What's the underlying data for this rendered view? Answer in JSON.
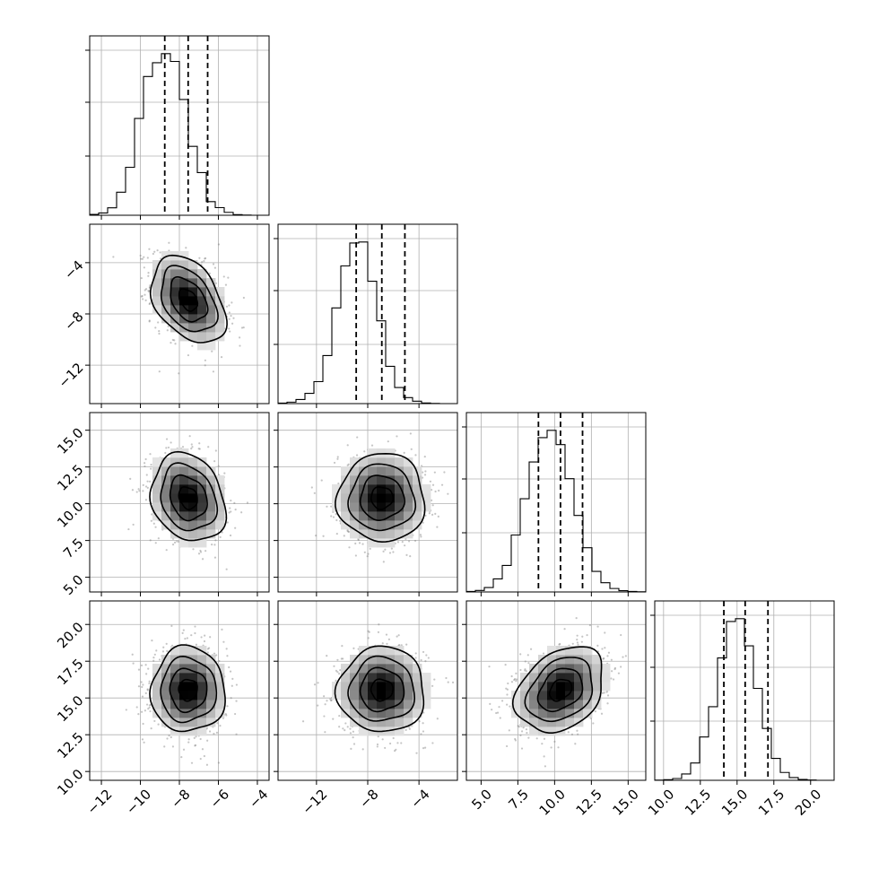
{
  "chart_data": {
    "type": "corner",
    "n_params": 4,
    "grid": true,
    "colors": {
      "line": "#000000",
      "grid": "#b0b0b0",
      "scatter": "#7f7f7f",
      "density_dark": "#000000"
    },
    "params": [
      {
        "index": 0,
        "range": [
          -12.6,
          -3.4
        ],
        "ticks": [
          -12,
          -10,
          -8,
          -6,
          -4
        ],
        "tick_labels": [
          "−12",
          "−10",
          "−8",
          "−6",
          "−4"
        ],
        "mean": -7.55,
        "sd": 0.95,
        "quantiles": [
          -8.75,
          -7.55,
          -6.55
        ]
      },
      {
        "index": 1,
        "range": [
          -15.0,
          -1.0
        ],
        "ticks": [
          -12,
          -8,
          -4
        ],
        "tick_labels": [
          "−12",
          "−8",
          "−4"
        ],
        "mean": -6.9,
        "sd": 1.7,
        "quantiles": [
          -8.9,
          -6.9,
          -5.1
        ]
      },
      {
        "index": 2,
        "range": [
          4.0,
          16.2
        ],
        "ticks": [
          5.0,
          7.5,
          10.0,
          12.5,
          15.0
        ],
        "tick_labels": [
          "5.0",
          "7.5",
          "10.0",
          "12.5",
          "15.0"
        ],
        "mean": 10.4,
        "sd": 1.5,
        "quantiles": [
          8.9,
          10.4,
          11.9
        ]
      },
      {
        "index": 3,
        "range": [
          9.4,
          21.6
        ],
        "ticks": [
          10.0,
          12.5,
          15.0,
          17.5,
          20.0
        ],
        "tick_labels": [
          "10.0",
          "12.5",
          "15.0",
          "17.5",
          "20.0"
        ],
        "mean": 15.55,
        "sd": 1.45,
        "quantiles": [
          14.1,
          15.55,
          17.1
        ]
      }
    ],
    "histograms": [
      {
        "param": 0,
        "bins": 20,
        "peak_count": 1000,
        "counts": [
          5,
          14,
          46,
          142,
          296,
          597,
          856,
          941,
          997,
          949,
          714,
          425,
          263,
          84,
          47,
          18,
          4,
          1,
          0,
          0
        ]
      },
      {
        "param": 1,
        "bins": 20,
        "peak_count": 1000,
        "counts": [
          3,
          9,
          25,
          63,
          135,
          295,
          588,
          846,
          987,
          993,
          752,
          509,
          229,
          99,
          37,
          15,
          4,
          1,
          0,
          0
        ]
      },
      {
        "param": 2,
        "bins": 20,
        "peak_count": 1000,
        "counts": [
          3,
          9,
          27,
          79,
          160,
          344,
          563,
          785,
          932,
          976,
          890,
          684,
          462,
          267,
          124,
          56,
          21,
          8,
          3,
          1
        ]
      },
      {
        "param": 3,
        "bins": 20,
        "peak_count": 1000,
        "counts": [
          1,
          4,
          11,
          39,
          106,
          265,
          450,
          748,
          971,
          988,
          822,
          562,
          317,
          134,
          48,
          17,
          5,
          2,
          0,
          0
        ]
      }
    ],
    "pairs": [
      {
        "x_param": 0,
        "y_param": 1,
        "correlation": -0.38,
        "contour_levels": [
          0.5,
          1.0,
          1.5,
          2.0
        ],
        "n_points": 900
      },
      {
        "x_param": 0,
        "y_param": 2,
        "correlation": -0.2,
        "contour_levels": [
          0.5,
          1.0,
          1.5,
          2.0
        ],
        "n_points": 900
      },
      {
        "x_param": 1,
        "y_param": 2,
        "correlation": 0.0,
        "contour_levels": [
          0.5,
          1.0,
          1.5,
          2.0
        ],
        "n_points": 900
      },
      {
        "x_param": 0,
        "y_param": 3,
        "correlation": 0.0,
        "contour_levels": [
          0.5,
          1.0,
          1.5,
          2.0
        ],
        "n_points": 900
      },
      {
        "x_param": 1,
        "y_param": 3,
        "correlation": 0.0,
        "contour_levels": [
          0.5,
          1.0,
          1.5,
          2.0
        ],
        "n_points": 900
      },
      {
        "x_param": 2,
        "y_param": 3,
        "correlation": 0.3,
        "contour_levels": [
          0.5,
          1.0,
          1.5,
          2.0
        ],
        "n_points": 900
      }
    ]
  }
}
